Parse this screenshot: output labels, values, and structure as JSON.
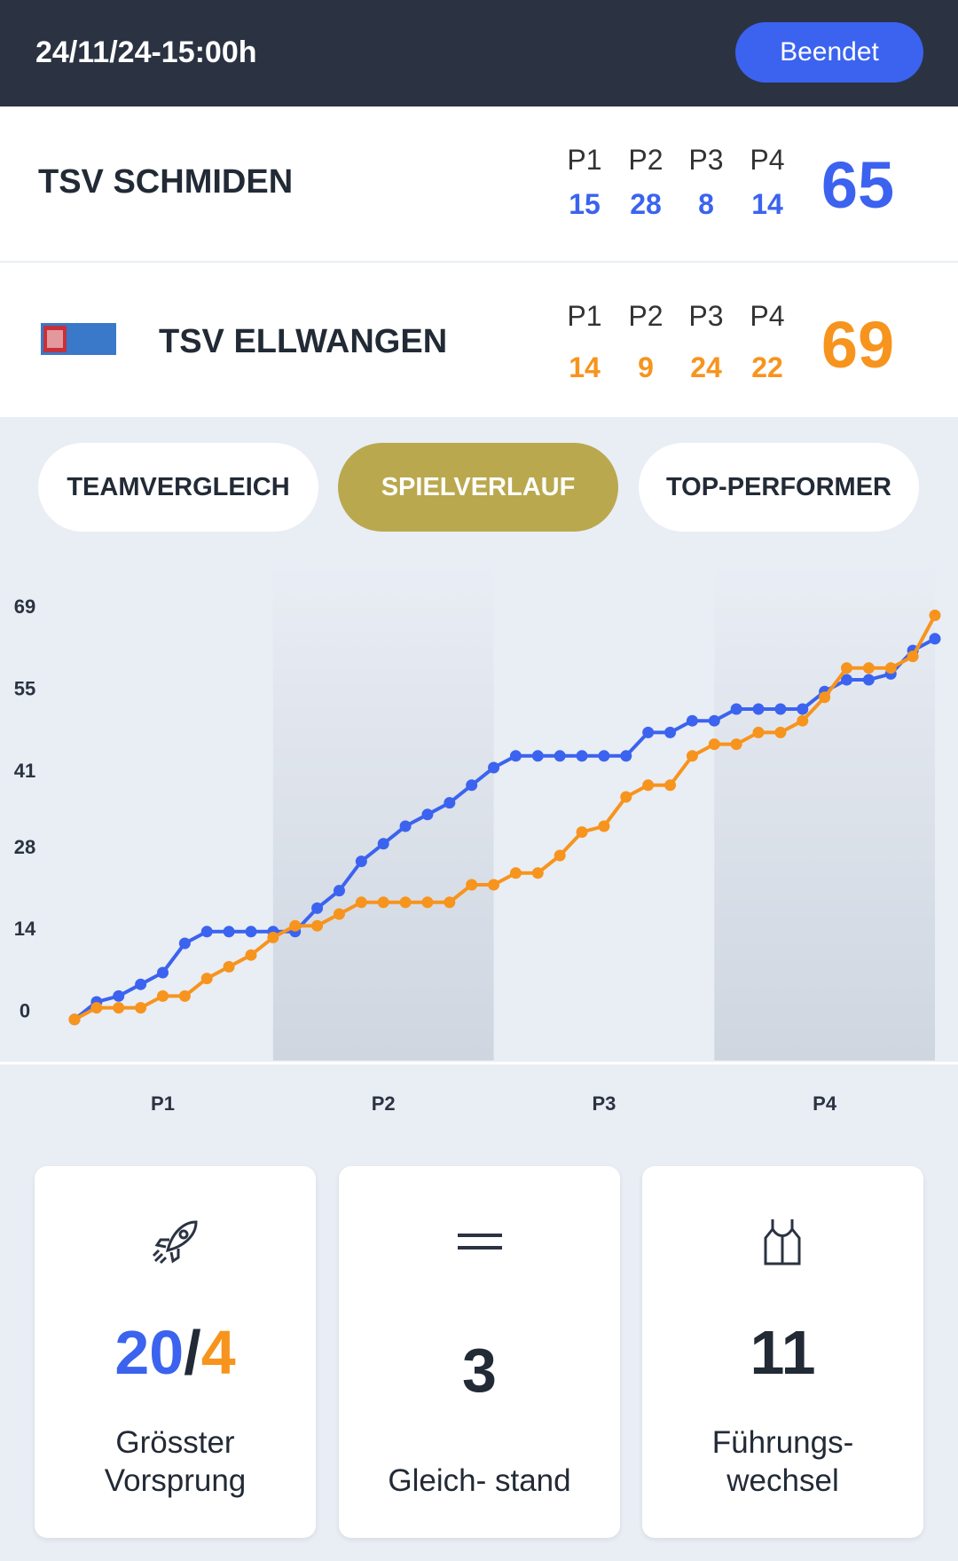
{
  "header": {
    "datetime": "24/11/24-15:00h",
    "status": "Beendet"
  },
  "teams": [
    {
      "name": "TSV SCHMIDEN",
      "periods": [
        {
          "label": "P1",
          "score": 15
        },
        {
          "label": "P2",
          "score": 28
        },
        {
          "label": "P3",
          "score": 8
        },
        {
          "label": "P4",
          "score": 14
        }
      ],
      "total": 65
    },
    {
      "name": "TSV ELLWANGEN",
      "periods": [
        {
          "label": "P1",
          "score": 14
        },
        {
          "label": "P2",
          "score": 9
        },
        {
          "label": "P3",
          "score": 24
        },
        {
          "label": "P4",
          "score": 22
        }
      ],
      "total": 69
    }
  ],
  "tabs": [
    "TEAMVERGLEICH",
    "SPIELVERLAUF",
    "TOP-PERFORMER"
  ],
  "chart_data": {
    "type": "line",
    "categories": [
      null,
      null,
      null,
      null,
      null,
      null,
      null,
      null,
      null,
      null,
      null,
      null,
      null,
      null,
      null,
      null,
      null,
      null,
      null,
      null,
      null,
      null,
      null,
      null,
      null,
      null,
      null,
      null,
      null,
      null,
      null,
      null,
      null,
      null,
      null,
      null,
      null,
      null,
      null,
      null
    ],
    "period_labels": [
      "P1",
      "P2",
      "P3",
      "P4"
    ],
    "series": [
      {
        "name": "TSV SCHMIDEN",
        "color": "#3b63ef",
        "values": [
          0,
          3,
          4,
          6,
          8,
          13,
          15,
          15,
          15,
          15,
          15,
          19,
          22,
          27,
          30,
          33,
          35,
          37,
          40,
          43,
          45,
          45,
          45,
          45,
          45,
          45,
          49,
          49,
          51,
          51,
          53,
          53,
          53,
          53,
          56,
          58,
          58,
          59,
          63,
          65
        ]
      },
      {
        "name": "TSV ELLWANGEN",
        "color": "#f7941d",
        "values": [
          0,
          2,
          2,
          2,
          4,
          4,
          7,
          9,
          11,
          14,
          16,
          16,
          18,
          20,
          20,
          20,
          20,
          20,
          23,
          23,
          25,
          25,
          28,
          32,
          33,
          38,
          40,
          40,
          45,
          47,
          47,
          49,
          49,
          51,
          55,
          60,
          60,
          60,
          62,
          69
        ]
      }
    ],
    "ylim": [
      -7,
      78
    ],
    "yticks": [
      0,
      14,
      28,
      41,
      55,
      69
    ]
  },
  "stats": [
    {
      "home": 20,
      "separator": "/",
      "away": 4,
      "label": "Grösster Vorsprung"
    },
    {
      "value": 3,
      "label": "Gleich- stand"
    },
    {
      "value": 11,
      "label": "Führungs-wechsel"
    }
  ]
}
